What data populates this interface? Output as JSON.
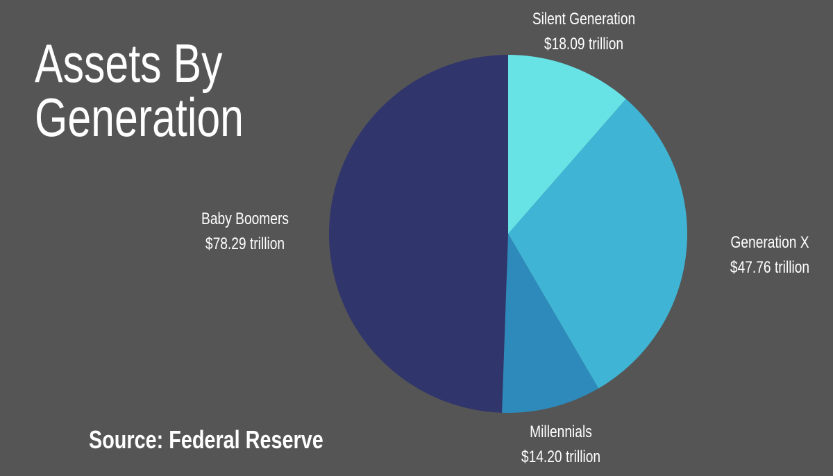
{
  "title_lines": [
    "Assets By",
    "Generation"
  ],
  "source": "Source: Federal Reserve",
  "chart_data": {
    "type": "pie",
    "title": "Assets By Generation",
    "unit": "trillion USD",
    "start": "top, clockwise",
    "slices": [
      {
        "name": "Silent Generation",
        "value": 18.09,
        "label": "$18.09 trillion",
        "color": "#67e3e6"
      },
      {
        "name": "Generation X",
        "value": 47.76,
        "label": "$47.76 trillion",
        "color": "#40b4d4"
      },
      {
        "name": "Millennials",
        "value": 14.2,
        "label": "$14.20 trillion",
        "color": "#2d8aba"
      },
      {
        "name": "Baby Boomers",
        "value": 78.29,
        "label": "$78.29 trillion",
        "color": "#30356b"
      }
    ]
  },
  "colors": {
    "background": "#555555",
    "text": "#ffffff"
  }
}
